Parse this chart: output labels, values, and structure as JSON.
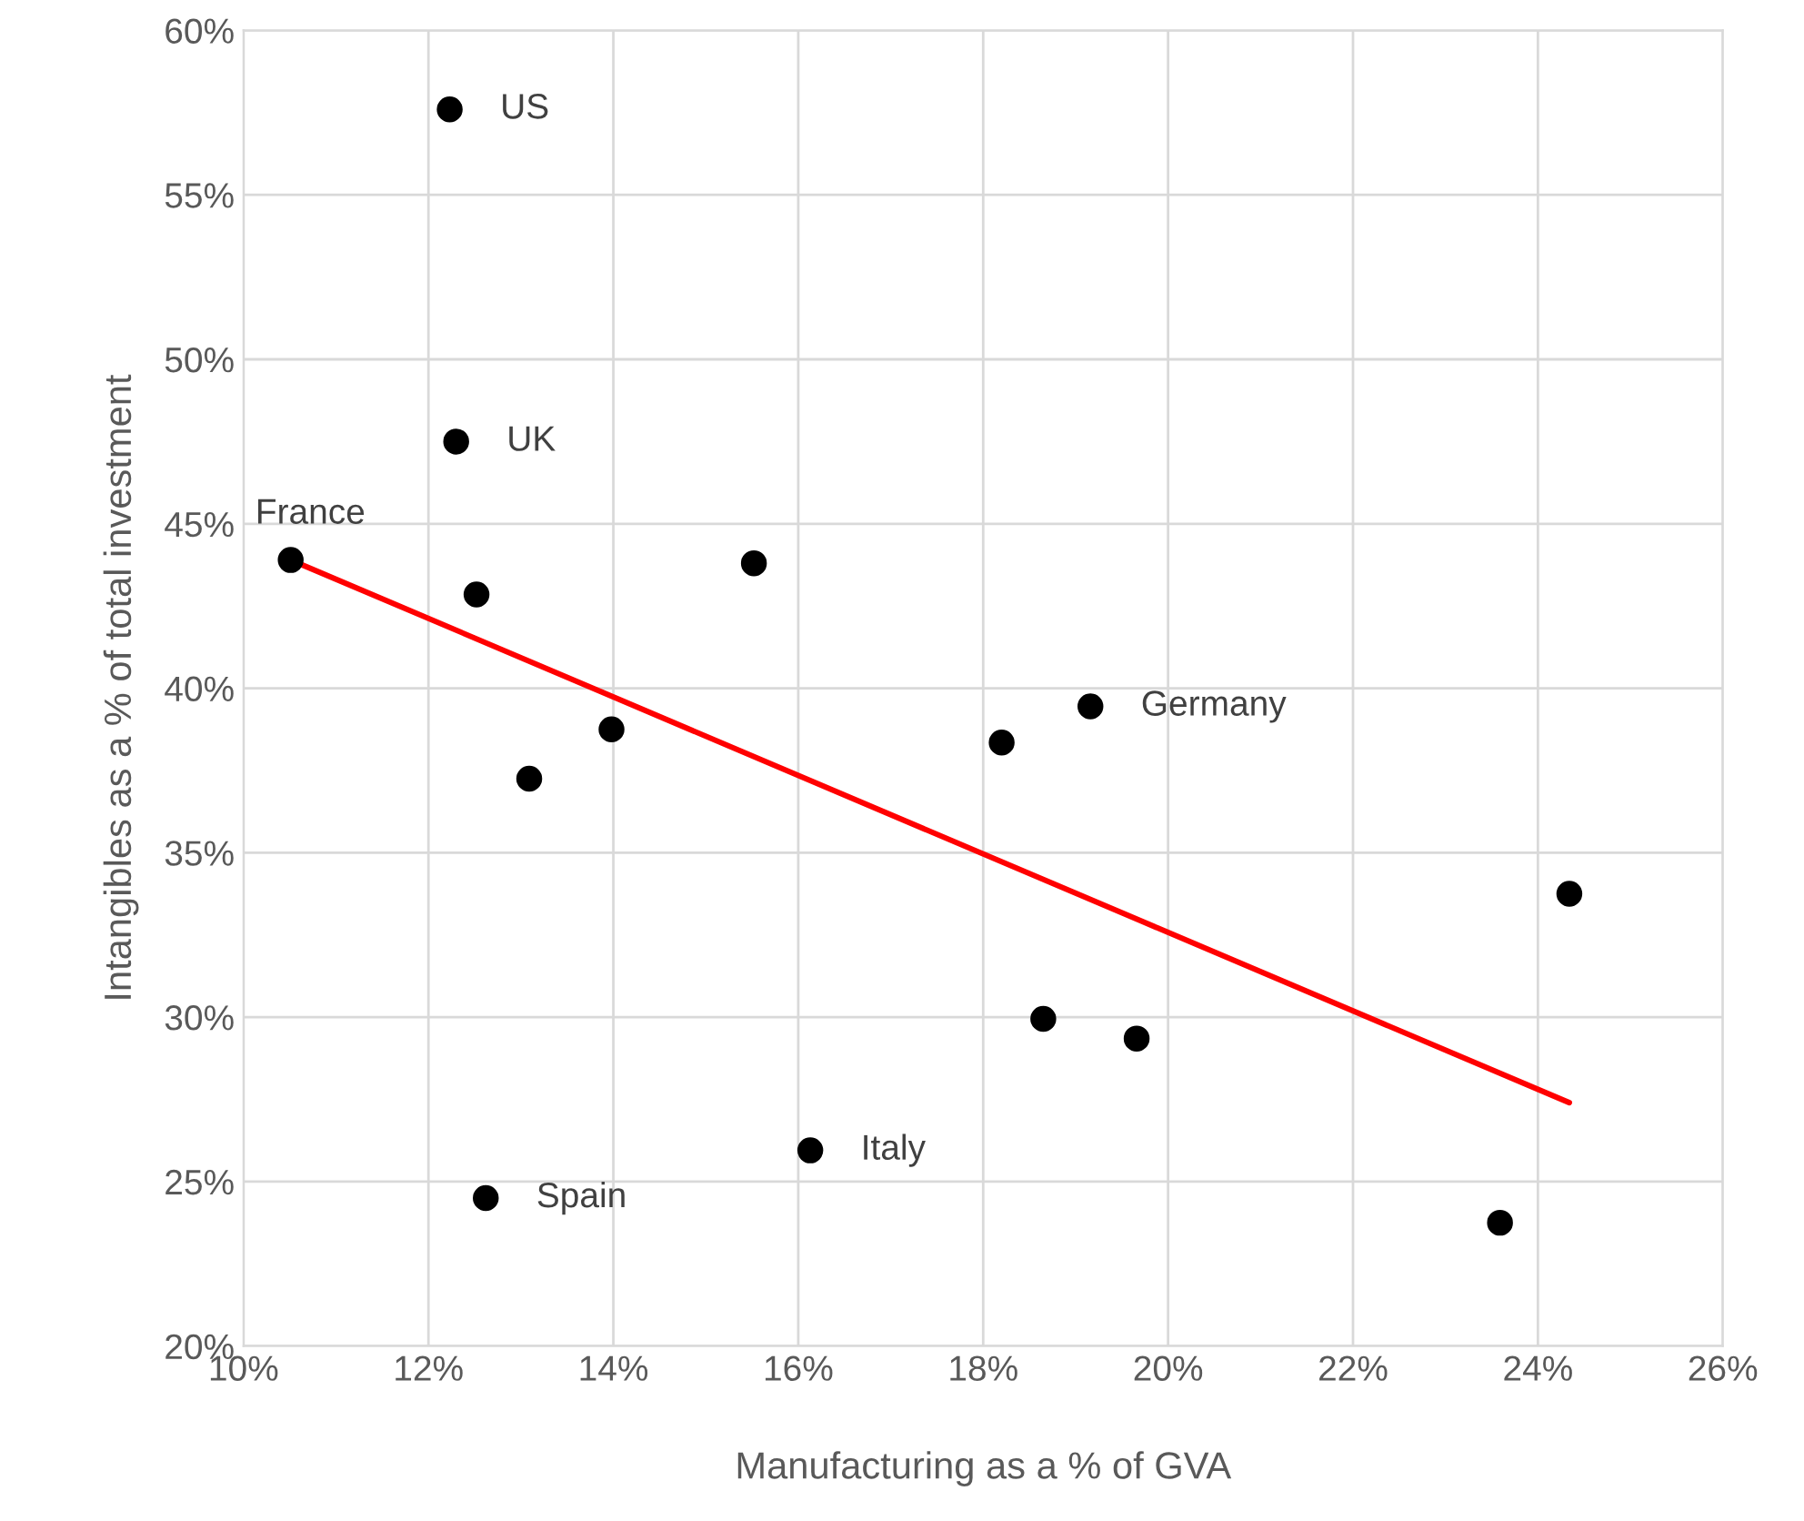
{
  "chart_data": {
    "type": "scatter",
    "xlabel": "Manufacturing as a % of GVA",
    "ylabel": "Intangibles as a % of total investment",
    "xlim": [
      10,
      26
    ],
    "xticks": [
      {
        "value": 10,
        "label": "10%"
      },
      {
        "value": 12,
        "label": "12%"
      },
      {
        "value": 14,
        "label": "14%"
      },
      {
        "value": 16,
        "label": "16%"
      },
      {
        "value": 18,
        "label": "18%"
      },
      {
        "value": 20,
        "label": "20%"
      },
      {
        "value": 22,
        "label": "22%"
      },
      {
        "value": 24,
        "label": "24%"
      },
      {
        "value": 26,
        "label": "26%"
      }
    ],
    "ylim": [
      20,
      60
    ],
    "yticks": [
      {
        "value": 20,
        "label": "20%"
      },
      {
        "value": 25,
        "label": "25%"
      },
      {
        "value": 30,
        "label": "30%"
      },
      {
        "value": 35,
        "label": "35%"
      },
      {
        "value": 40,
        "label": "40%"
      },
      {
        "value": 45,
        "label": "45%"
      },
      {
        "value": 50,
        "label": "50%"
      },
      {
        "value": 55,
        "label": "55%"
      },
      {
        "value": 60,
        "label": "60%"
      }
    ],
    "grid": true,
    "series": [
      {
        "marker": "circle",
        "color": "#000000",
        "x": [
          12.23,
          12.3,
          10.51,
          12.52,
          15.52,
          13.09,
          13.98,
          18.2,
          19.16,
          24.34,
          18.65,
          19.66,
          16.13,
          12.62,
          23.59
        ],
        "values": [
          57.6,
          47.5,
          43.9,
          42.85,
          43.8,
          37.25,
          38.75,
          38.35,
          39.45,
          33.75,
          29.95,
          29.35,
          25.95,
          24.5,
          23.75
        ]
      },
      {
        "type": "line",
        "color": "#ff0000",
        "x": [
          10.51,
          24.34
        ],
        "values": [
          43.9,
          27.4
        ]
      }
    ],
    "annotations": [
      {
        "text": "US",
        "x": 12.23,
        "y": 57.6
      },
      {
        "text": "UK",
        "x": 12.3,
        "y": 47.5
      },
      {
        "text": "France",
        "x": 10.51,
        "y": 43.9
      },
      {
        "text": "Germany",
        "x": 19.16,
        "y": 39.45
      },
      {
        "text": "Italy",
        "x": 16.13,
        "y": 25.95
      },
      {
        "text": "Spain",
        "x": 12.62,
        "y": 24.5
      }
    ]
  }
}
